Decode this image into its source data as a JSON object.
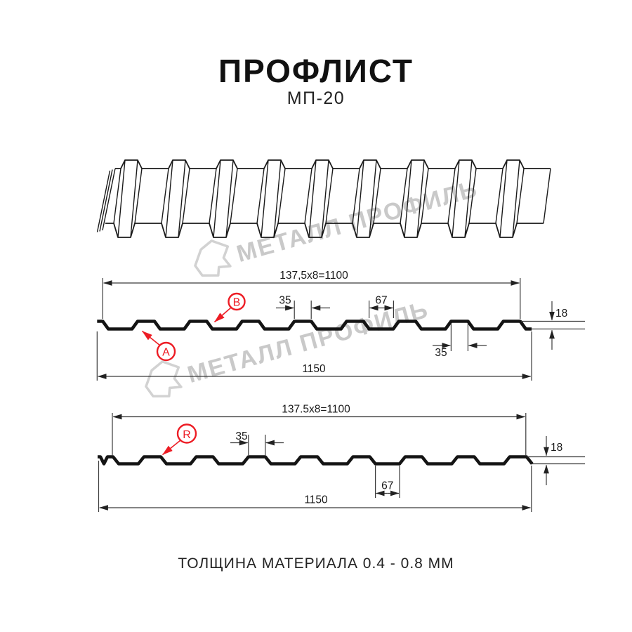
{
  "title": "ПРОФЛИСТ",
  "subtitle": "МП-20",
  "footer": "ТОЛЩИНА МАТЕРИАЛА 0.4 - 0.8 ММ",
  "watermark": {
    "text": "МЕТАЛЛ ПРОФИЛЬ",
    "logo": "metall-profil-logo"
  },
  "section_a": {
    "marker_a": "A",
    "marker_b": "B",
    "dims": {
      "pitch": "137,5x8=1100",
      "rib_top": "35",
      "valley": "67",
      "height": "18",
      "rib_bottom": "35",
      "overall": "1150"
    }
  },
  "section_r": {
    "marker_r": "R",
    "dims": {
      "pitch": "137.5x8=1100",
      "rib_top": "35",
      "valley": "67",
      "height": "18",
      "overall": "1150"
    }
  },
  "colors": {
    "accent_red": "#ed1c24",
    "line_black": "#1a1a1a",
    "watermark_gray": "#c9c9c9"
  }
}
